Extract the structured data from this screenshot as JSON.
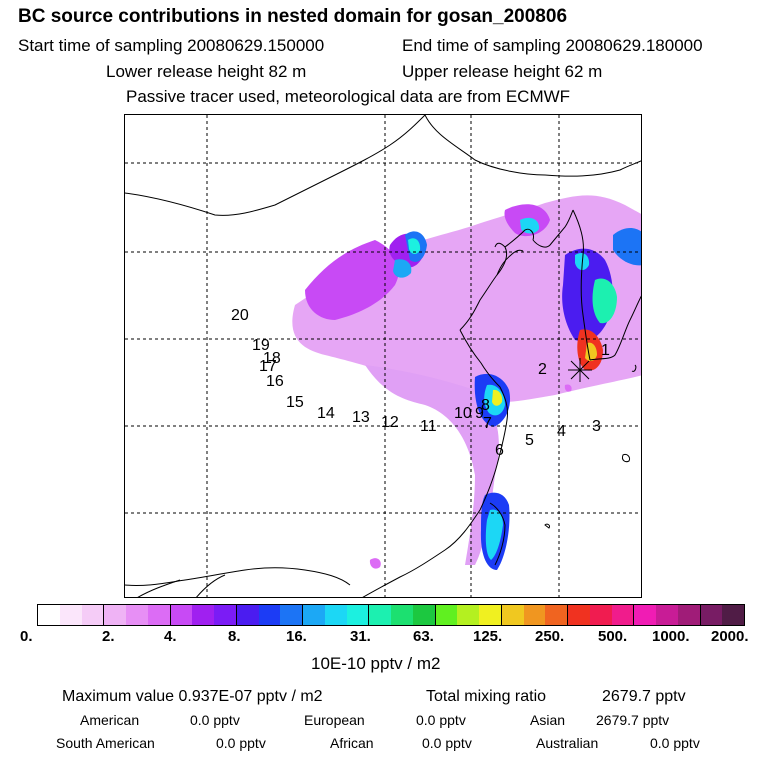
{
  "header": {
    "title": "BC  source contributions in nested domain for gosan_200806",
    "start": "Start time of sampling 20080629.150000",
    "end": "End time of sampling 20080629.180000",
    "lower": "Lower release height   82 m",
    "upper": "Upper release height   62 m",
    "note": "Passive tracer used, meteorological data are from ECMWF"
  },
  "map": {
    "trajectory_labels": [
      "1",
      "2",
      "3",
      "4",
      "5",
      "6",
      "7",
      "8",
      "9",
      "10",
      "11",
      "12",
      "13",
      "14",
      "15",
      "16",
      "17",
      "18",
      "19",
      "20"
    ],
    "receptor_icon": "star-marker"
  },
  "colorbar": {
    "colors": [
      "#ffffff",
      "#fbe6fb",
      "#f5ccf7",
      "#efb3f5",
      "#e78ff5",
      "#dc6cf5",
      "#c84af5",
      "#a020f0",
      "#7b1cf5",
      "#4b1cf0",
      "#1c3cf5",
      "#1c74f5",
      "#1ca8f5",
      "#1cd7f5",
      "#1cf0e0",
      "#1cf0b0",
      "#1ce070",
      "#1cc840",
      "#60f020",
      "#b4f020",
      "#f0f020",
      "#f0c820",
      "#f09620",
      "#f06420",
      "#f03220",
      "#f01c50",
      "#f01c8c",
      "#f01cb4",
      "#c81c96",
      "#a01c78",
      "#781c64",
      "#501c46"
    ],
    "ticks": [
      "0.",
      "2.",
      "4.",
      "8.",
      "16.",
      "31.",
      "63.",
      "125.",
      "250.",
      "500.",
      "1000.",
      "2000."
    ],
    "unit": "10E-10 pptv / m2"
  },
  "stats": {
    "max_label": "Maximum value  0.937E-07 pptv / m2",
    "total_label": "Total mixing ratio",
    "total_value": "2679.7 pptv",
    "american_label": "American",
    "american_value": "0.0 pptv",
    "european_label": "European",
    "european_value": "0.0 pptv",
    "asian_label": "Asian",
    "asian_value": "2679.7 pptv",
    "south_american_label": "South American",
    "south_american_value": "0.0 pptv",
    "african_label": "African",
    "african_value": "0.0 pptv",
    "australian_label": "Australian",
    "australian_value": "0.0 pptv"
  }
}
